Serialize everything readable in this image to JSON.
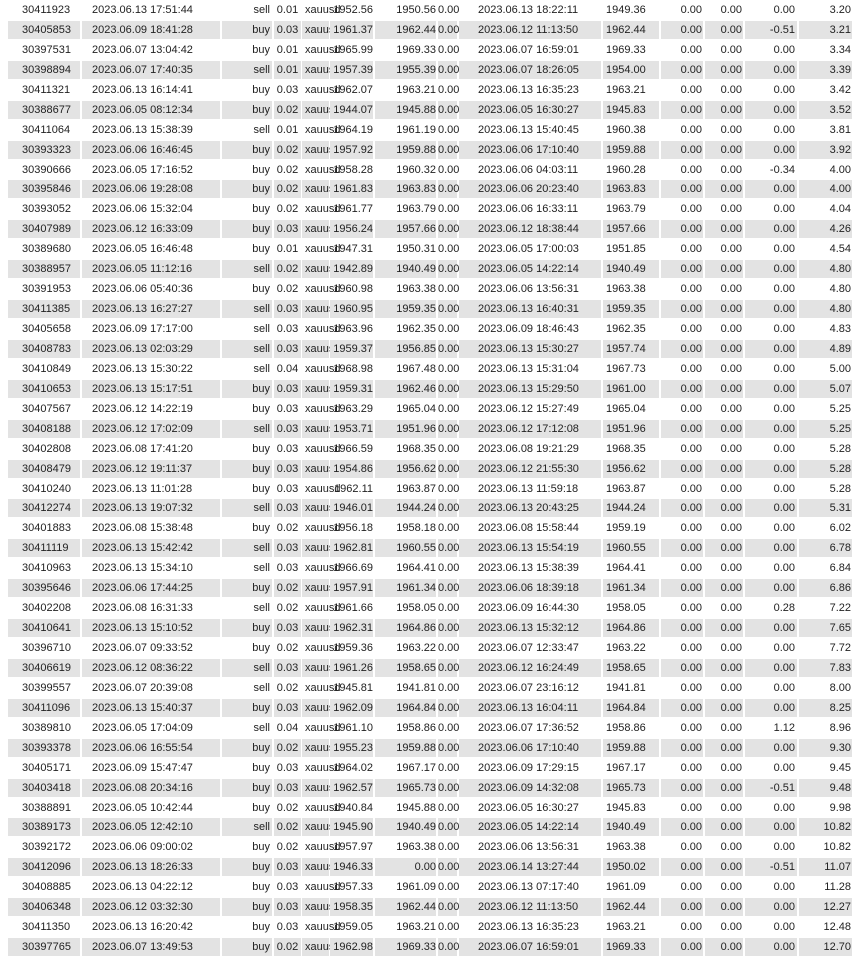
{
  "table": {
    "rows": [
      [
        "30411923",
        "2023.06.13 17:51:44",
        "sell",
        "0.01",
        "xauusd",
        "1952.56",
        "1950.56",
        "0.00",
        "2023.06.13 18:22:11",
        "1949.36",
        "0.00",
        "0.00",
        "0.00",
        "3.20"
      ],
      [
        "30405853",
        "2023.06.09 18:41:28",
        "buy",
        "0.03",
        "xauusd",
        "1961.37",
        "1962.44",
        "0.00",
        "2023.06.12 11:13:50",
        "1962.44",
        "0.00",
        "0.00",
        "-0.51",
        "3.21"
      ],
      [
        "30397531",
        "2023.06.07 13:04:42",
        "buy",
        "0.01",
        "xauusd",
        "1965.99",
        "1969.33",
        "0.00",
        "2023.06.07 16:59:01",
        "1969.33",
        "0.00",
        "0.00",
        "0.00",
        "3.34"
      ],
      [
        "30398894",
        "2023.06.07 17:40:35",
        "sell",
        "0.01",
        "xauusd",
        "1957.39",
        "1955.39",
        "0.00",
        "2023.06.07 18:26:05",
        "1954.00",
        "0.00",
        "0.00",
        "0.00",
        "3.39"
      ],
      [
        "30411321",
        "2023.06.13 16:14:41",
        "buy",
        "0.03",
        "xauusd",
        "1962.07",
        "1963.21",
        "0.00",
        "2023.06.13 16:35:23",
        "1963.21",
        "0.00",
        "0.00",
        "0.00",
        "3.42"
      ],
      [
        "30388677",
        "2023.06.05 08:12:34",
        "buy",
        "0.02",
        "xauusd",
        "1944.07",
        "1945.88",
        "0.00",
        "2023.06.05 16:30:27",
        "1945.83",
        "0.00",
        "0.00",
        "0.00",
        "3.52"
      ],
      [
        "30411064",
        "2023.06.13 15:38:39",
        "sell",
        "0.01",
        "xauusd",
        "1964.19",
        "1961.19",
        "0.00",
        "2023.06.13 15:40:45",
        "1960.38",
        "0.00",
        "0.00",
        "0.00",
        "3.81"
      ],
      [
        "30393323",
        "2023.06.06 16:46:45",
        "buy",
        "0.02",
        "xauusd",
        "1957.92",
        "1959.88",
        "0.00",
        "2023.06.06 17:10:40",
        "1959.88",
        "0.00",
        "0.00",
        "0.00",
        "3.92"
      ],
      [
        "30390666",
        "2023.06.05 17:16:52",
        "buy",
        "0.02",
        "xauusd",
        "1958.28",
        "1960.32",
        "0.00",
        "2023.06.06 04:03:11",
        "1960.28",
        "0.00",
        "0.00",
        "-0.34",
        "4.00"
      ],
      [
        "30395846",
        "2023.06.06 19:28:08",
        "buy",
        "0.02",
        "xauusd",
        "1961.83",
        "1963.83",
        "0.00",
        "2023.06.06 20:23:40",
        "1963.83",
        "0.00",
        "0.00",
        "0.00",
        "4.00"
      ],
      [
        "30393052",
        "2023.06.06 15:32:04",
        "buy",
        "0.02",
        "xauusd",
        "1961.77",
        "1963.79",
        "0.00",
        "2023.06.06 16:33:11",
        "1963.79",
        "0.00",
        "0.00",
        "0.00",
        "4.04"
      ],
      [
        "30407989",
        "2023.06.12 16:33:09",
        "buy",
        "0.03",
        "xauusd",
        "1956.24",
        "1957.66",
        "0.00",
        "2023.06.12 18:38:44",
        "1957.66",
        "0.00",
        "0.00",
        "0.00",
        "4.26"
      ],
      [
        "30389680",
        "2023.06.05 16:46:48",
        "buy",
        "0.01",
        "xauusd",
        "1947.31",
        "1950.31",
        "0.00",
        "2023.06.05 17:00:03",
        "1951.85",
        "0.00",
        "0.00",
        "0.00",
        "4.54"
      ],
      [
        "30388957",
        "2023.06.05 11:12:16",
        "sell",
        "0.02",
        "xauusd",
        "1942.89",
        "1940.49",
        "0.00",
        "2023.06.05 14:22:14",
        "1940.49",
        "0.00",
        "0.00",
        "0.00",
        "4.80"
      ],
      [
        "30391953",
        "2023.06.06 05:40:36",
        "buy",
        "0.02",
        "xauusd",
        "1960.98",
        "1963.38",
        "0.00",
        "2023.06.06 13:56:31",
        "1963.38",
        "0.00",
        "0.00",
        "0.00",
        "4.80"
      ],
      [
        "30411385",
        "2023.06.13 16:27:27",
        "sell",
        "0.03",
        "xauusd",
        "1960.95",
        "1959.35",
        "0.00",
        "2023.06.13 16:40:31",
        "1959.35",
        "0.00",
        "0.00",
        "0.00",
        "4.80"
      ],
      [
        "30405658",
        "2023.06.09 17:17:00",
        "sell",
        "0.03",
        "xauusd",
        "1963.96",
        "1962.35",
        "0.00",
        "2023.06.09 18:46:43",
        "1962.35",
        "0.00",
        "0.00",
        "0.00",
        "4.83"
      ],
      [
        "30408783",
        "2023.06.13 02:03:29",
        "sell",
        "0.03",
        "xauusd",
        "1959.37",
        "1956.85",
        "0.00",
        "2023.06.13 15:30:27",
        "1957.74",
        "0.00",
        "0.00",
        "0.00",
        "4.89"
      ],
      [
        "30410849",
        "2023.06.13 15:30:22",
        "sell",
        "0.04",
        "xauusd",
        "1968.98",
        "1967.48",
        "0.00",
        "2023.06.13 15:31:04",
        "1967.73",
        "0.00",
        "0.00",
        "0.00",
        "5.00"
      ],
      [
        "30410653",
        "2023.06.13 15:17:51",
        "buy",
        "0.03",
        "xauusd",
        "1959.31",
        "1962.46",
        "0.00",
        "2023.06.13 15:29:50",
        "1961.00",
        "0.00",
        "0.00",
        "0.00",
        "5.07"
      ],
      [
        "30407567",
        "2023.06.12 14:22:19",
        "buy",
        "0.03",
        "xauusd",
        "1963.29",
        "1965.04",
        "0.00",
        "2023.06.12 15:27:49",
        "1965.04",
        "0.00",
        "0.00",
        "0.00",
        "5.25"
      ],
      [
        "30408188",
        "2023.06.12 17:02:09",
        "sell",
        "0.03",
        "xauusd",
        "1953.71",
        "1951.96",
        "0.00",
        "2023.06.12 17:12:08",
        "1951.96",
        "0.00",
        "0.00",
        "0.00",
        "5.25"
      ],
      [
        "30402808",
        "2023.06.08 17:41:20",
        "buy",
        "0.03",
        "xauusd",
        "1966.59",
        "1968.35",
        "0.00",
        "2023.06.08 19:21:29",
        "1968.35",
        "0.00",
        "0.00",
        "0.00",
        "5.28"
      ],
      [
        "30408479",
        "2023.06.12 19:11:37",
        "buy",
        "0.03",
        "xauusd",
        "1954.86",
        "1956.62",
        "0.00",
        "2023.06.12 21:55:30",
        "1956.62",
        "0.00",
        "0.00",
        "0.00",
        "5.28"
      ],
      [
        "30410240",
        "2023.06.13 11:01:28",
        "buy",
        "0.03",
        "xauusd",
        "1962.11",
        "1963.87",
        "0.00",
        "2023.06.13 11:59:18",
        "1963.87",
        "0.00",
        "0.00",
        "0.00",
        "5.28"
      ],
      [
        "30412274",
        "2023.06.13 19:07:32",
        "sell",
        "0.03",
        "xauusd",
        "1946.01",
        "1944.24",
        "0.00",
        "2023.06.13 20:43:25",
        "1944.24",
        "0.00",
        "0.00",
        "0.00",
        "5.31"
      ],
      [
        "30401883",
        "2023.06.08 15:38:48",
        "buy",
        "0.02",
        "xauusd",
        "1956.18",
        "1958.18",
        "0.00",
        "2023.06.08 15:58:44",
        "1959.19",
        "0.00",
        "0.00",
        "0.00",
        "6.02"
      ],
      [
        "30411119",
        "2023.06.13 15:42:42",
        "sell",
        "0.03",
        "xauusd",
        "1962.81",
        "1960.55",
        "0.00",
        "2023.06.13 15:54:19",
        "1960.55",
        "0.00",
        "0.00",
        "0.00",
        "6.78"
      ],
      [
        "30410963",
        "2023.06.13 15:34:10",
        "sell",
        "0.03",
        "xauusd",
        "1966.69",
        "1964.41",
        "0.00",
        "2023.06.13 15:38:39",
        "1964.41",
        "0.00",
        "0.00",
        "0.00",
        "6.84"
      ],
      [
        "30395646",
        "2023.06.06 17:44:25",
        "buy",
        "0.02",
        "xauusd",
        "1957.91",
        "1961.34",
        "0.00",
        "2023.06.06 18:39:18",
        "1961.34",
        "0.00",
        "0.00",
        "0.00",
        "6.86"
      ],
      [
        "30402208",
        "2023.06.08 16:31:33",
        "sell",
        "0.02",
        "xauusd",
        "1961.66",
        "1958.05",
        "0.00",
        "2023.06.09 16:44:30",
        "1958.05",
        "0.00",
        "0.00",
        "0.28",
        "7.22"
      ],
      [
        "30410641",
        "2023.06.13 15:10:52",
        "buy",
        "0.03",
        "xauusd",
        "1962.31",
        "1964.86",
        "0.00",
        "2023.06.13 15:32:12",
        "1964.86",
        "0.00",
        "0.00",
        "0.00",
        "7.65"
      ],
      [
        "30396710",
        "2023.06.07 09:33:52",
        "buy",
        "0.02",
        "xauusd",
        "1959.36",
        "1963.22",
        "0.00",
        "2023.06.07 12:33:47",
        "1963.22",
        "0.00",
        "0.00",
        "0.00",
        "7.72"
      ],
      [
        "30406619",
        "2023.06.12 08:36:22",
        "sell",
        "0.03",
        "xauusd",
        "1961.26",
        "1958.65",
        "0.00",
        "2023.06.12 16:24:49",
        "1958.65",
        "0.00",
        "0.00",
        "0.00",
        "7.83"
      ],
      [
        "30399557",
        "2023.06.07 20:39:08",
        "sell",
        "0.02",
        "xauusd",
        "1945.81",
        "1941.81",
        "0.00",
        "2023.06.07 23:16:12",
        "1941.81",
        "0.00",
        "0.00",
        "0.00",
        "8.00"
      ],
      [
        "30411096",
        "2023.06.13 15:40:37",
        "buy",
        "0.03",
        "xauusd",
        "1962.09",
        "1964.84",
        "0.00",
        "2023.06.13 16:04:11",
        "1964.84",
        "0.00",
        "0.00",
        "0.00",
        "8.25"
      ],
      [
        "30389810",
        "2023.06.05 17:04:09",
        "sell",
        "0.04",
        "xauusd",
        "1961.10",
        "1958.86",
        "0.00",
        "2023.06.07 17:36:52",
        "1958.86",
        "0.00",
        "0.00",
        "1.12",
        "8.96"
      ],
      [
        "30393378",
        "2023.06.06 16:55:54",
        "buy",
        "0.02",
        "xauusd",
        "1955.23",
        "1959.88",
        "0.00",
        "2023.06.06 17:10:40",
        "1959.88",
        "0.00",
        "0.00",
        "0.00",
        "9.30"
      ],
      [
        "30405171",
        "2023.06.09 15:47:47",
        "buy",
        "0.03",
        "xauusd",
        "1964.02",
        "1967.17",
        "0.00",
        "2023.06.09 17:29:15",
        "1967.17",
        "0.00",
        "0.00",
        "0.00",
        "9.45"
      ],
      [
        "30403418",
        "2023.06.08 20:34:16",
        "buy",
        "0.03",
        "xauusd",
        "1962.57",
        "1965.73",
        "0.00",
        "2023.06.09 14:32:08",
        "1965.73",
        "0.00",
        "0.00",
        "-0.51",
        "9.48"
      ],
      [
        "30388891",
        "2023.06.05 10:42:44",
        "buy",
        "0.02",
        "xauusd",
        "1940.84",
        "1945.88",
        "0.00",
        "2023.06.05 16:30:27",
        "1945.83",
        "0.00",
        "0.00",
        "0.00",
        "9.98"
      ],
      [
        "30389173",
        "2023.06.05 12:42:10",
        "sell",
        "0.02",
        "xauusd",
        "1945.90",
        "1940.49",
        "0.00",
        "2023.06.05 14:22:14",
        "1940.49",
        "0.00",
        "0.00",
        "0.00",
        "10.82"
      ],
      [
        "30392172",
        "2023.06.06 09:00:02",
        "buy",
        "0.02",
        "xauusd",
        "1957.97",
        "1963.38",
        "0.00",
        "2023.06.06 13:56:31",
        "1963.38",
        "0.00",
        "0.00",
        "0.00",
        "10.82"
      ],
      [
        "30412096",
        "2023.06.13 18:26:33",
        "buy",
        "0.03",
        "xauusd",
        "1946.33",
        "0.00",
        "0.00",
        "2023.06.14 13:27:44",
        "1950.02",
        "0.00",
        "0.00",
        "-0.51",
        "11.07"
      ],
      [
        "30408885",
        "2023.06.13 04:22:12",
        "buy",
        "0.03",
        "xauusd",
        "1957.33",
        "1961.09",
        "0.00",
        "2023.06.13 07:17:40",
        "1961.09",
        "0.00",
        "0.00",
        "0.00",
        "11.28"
      ],
      [
        "30406348",
        "2023.06.12 03:32:30",
        "buy",
        "0.03",
        "xauusd",
        "1958.35",
        "1962.44",
        "0.00",
        "2023.06.12 11:13:50",
        "1962.44",
        "0.00",
        "0.00",
        "0.00",
        "12.27"
      ],
      [
        "30411350",
        "2023.06.13 16:20:42",
        "buy",
        "0.03",
        "xauusd",
        "1959.05",
        "1963.21",
        "0.00",
        "2023.06.13 16:35:23",
        "1963.21",
        "0.00",
        "0.00",
        "0.00",
        "12.48"
      ],
      [
        "30397765",
        "2023.06.07 13:49:53",
        "buy",
        "0.02",
        "xauusd",
        "1962.98",
        "1969.33",
        "0.00",
        "2023.06.07 16:59:01",
        "1969.33",
        "0.00",
        "0.00",
        "0.00",
        "12.70"
      ]
    ]
  },
  "colors": {
    "alt_row": "#e3e3e3",
    "text": "#222222"
  }
}
